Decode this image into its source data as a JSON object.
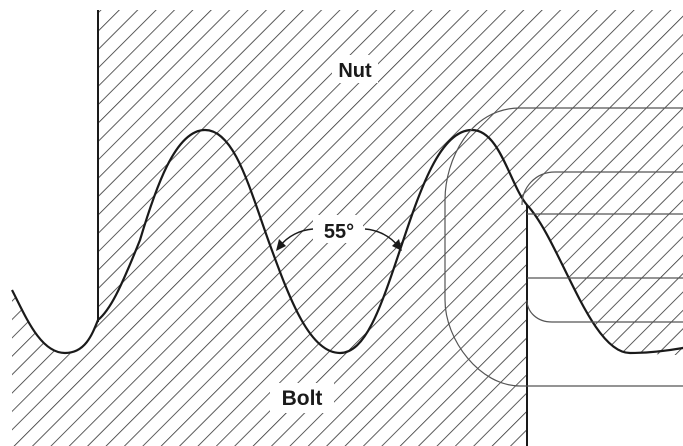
{
  "labels": {
    "nut": "Nut",
    "bolt": "Bolt",
    "angle": "55°"
  },
  "colors": {
    "line": "#1a1a1a",
    "hatch": "#333333",
    "thin_line": "#555555",
    "background": "#ffffff"
  }
}
